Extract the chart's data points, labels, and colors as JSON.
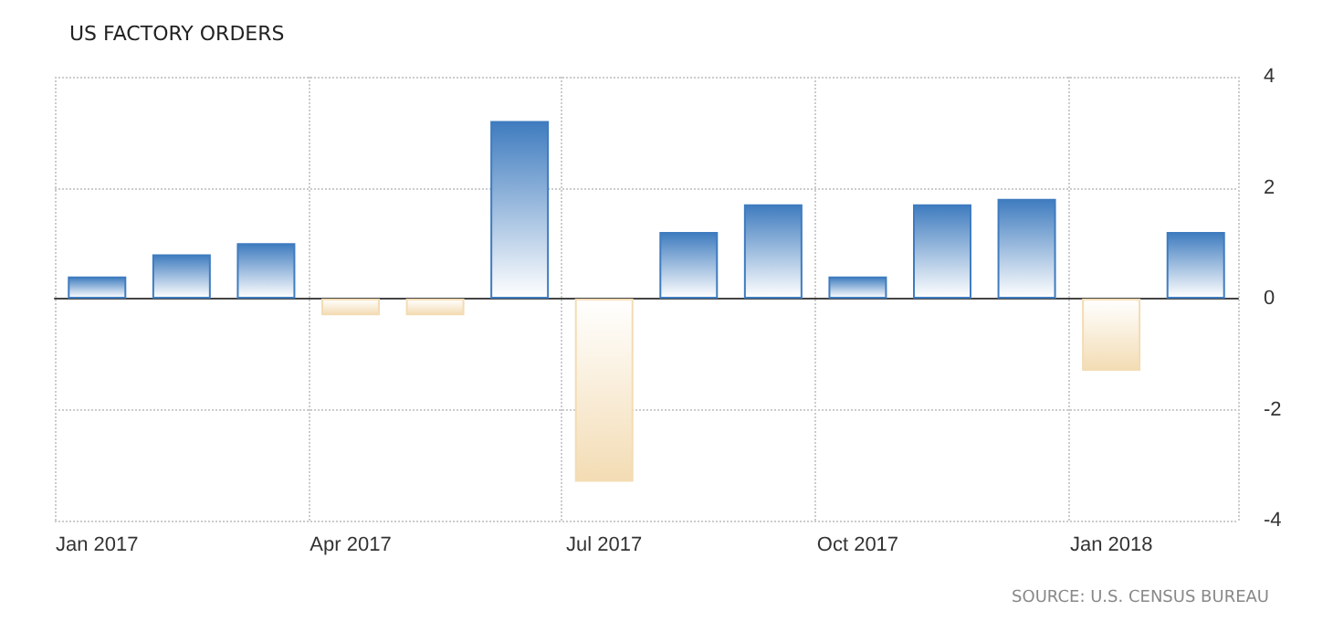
{
  "chart_data": {
    "type": "bar",
    "title": "US FACTORY ORDERS",
    "categories": [
      "Jan 2017",
      null,
      null,
      "Apr 2017",
      null,
      null,
      "Jul 2017",
      null,
      null,
      "Oct 2017",
      null,
      null,
      "Jan 2018",
      null
    ],
    "values": [
      0.4,
      0.8,
      1.0,
      -0.3,
      -0.3,
      3.2,
      -3.3,
      1.2,
      1.7,
      0.4,
      1.7,
      1.8,
      -1.3,
      1.2
    ],
    "colors": [
      "#3f7cbf",
      "#3f7cbf",
      "#3f7cbf",
      "#f3dcb4",
      "#f3dcb4",
      "#3f7cbf",
      "#f3dcb4",
      "#3f7cbf",
      "#3f7cbf",
      "#3f7cbf",
      "#3f7cbf",
      "#3f7cbf",
      "#f3dcb4",
      "#3f7cbf"
    ],
    "ylim": [
      -4,
      4
    ],
    "yticks": [
      -4,
      -2,
      0,
      2,
      4
    ],
    "grid": true,
    "annotations": [
      "SOURCE: U.S. CENSUS BUREAU"
    ]
  }
}
